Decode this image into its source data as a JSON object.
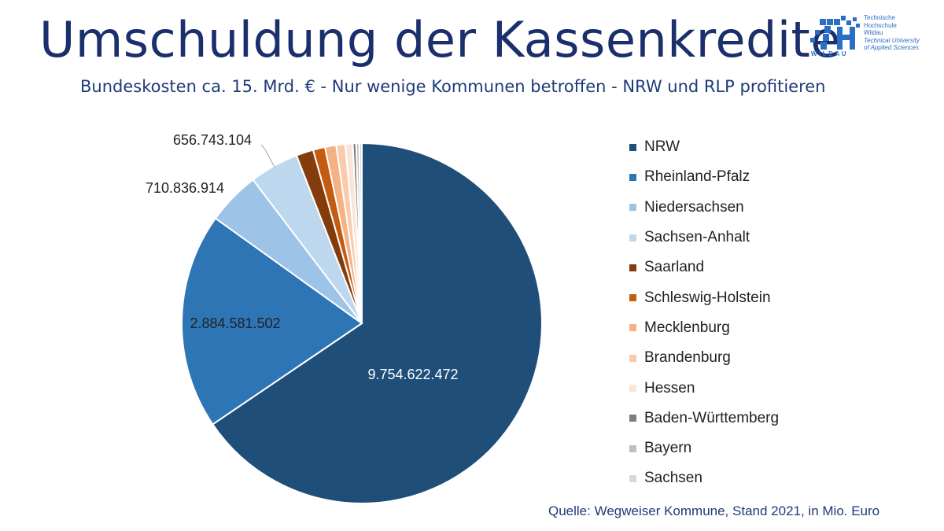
{
  "header": {
    "title": "Umschuldung der Kassenkredite",
    "subtitle": "Bundeskosten ca. 15. Mrd. € - Nur wenige Kommunen betroffen - NRW und RLP profitieren"
  },
  "logo": {
    "line1": "Technische",
    "line2": "Hochschule",
    "line3": "Wildau",
    "line4": "Technical University",
    "line5": "of Applied Sciences",
    "wordmark": "WILDAU",
    "color": "#2a6fc4"
  },
  "source": "Quelle: Wegweiser Kommune, Stand 2021, in Mio. Euro",
  "chart_data": {
    "type": "pie",
    "legend_position": "right",
    "slices": [
      {
        "name": "NRW",
        "value": 9754622472,
        "label": "9.754.622.472",
        "color": "#1f4e79"
      },
      {
        "name": "Rheinland-Pfalz",
        "value": 2884581502,
        "label": "2.884.581.502",
        "color": "#2e75b6"
      },
      {
        "name": "Niedersachsen",
        "value": 710836914,
        "label": "710.836.914",
        "color": "#9dc3e6"
      },
      {
        "name": "Sachsen-Anhalt",
        "value": 656743104,
        "label": "656.743.104",
        "color": "#bdd7ee"
      },
      {
        "name": "Saarland",
        "value": 230000000,
        "color": "#843c0c"
      },
      {
        "name": "Schleswig-Holstein",
        "value": 160000000,
        "color": "#c55a11"
      },
      {
        "name": "Mecklenburg",
        "value": 150000000,
        "color": "#f4b183"
      },
      {
        "name": "Brandenburg",
        "value": 120000000,
        "color": "#f8cbad"
      },
      {
        "name": "Hessen",
        "value": 100000000,
        "color": "#fbe5d6"
      },
      {
        "name": "Baden-Württemberg",
        "value": 45000000,
        "color": "#7f7f7f"
      },
      {
        "name": "Bayern",
        "value": 40000000,
        "color": "#bfbfbf"
      },
      {
        "name": "Sachsen",
        "value": 35000000,
        "color": "#d9d9d9"
      }
    ]
  }
}
